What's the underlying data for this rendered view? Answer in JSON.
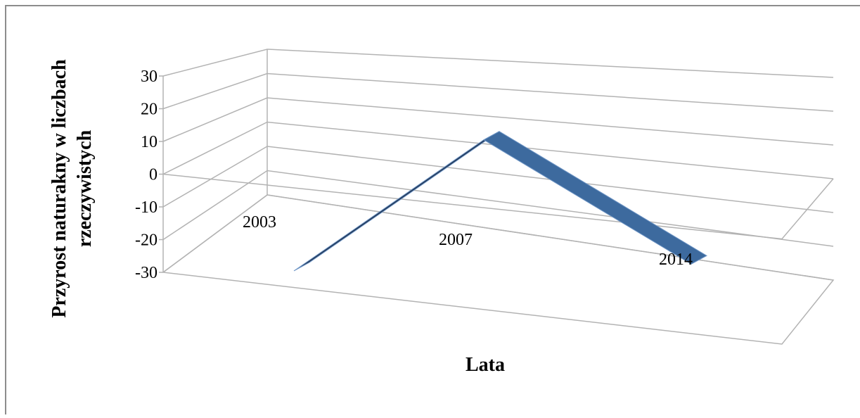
{
  "chart_data": {
    "type": "area",
    "title": "",
    "xlabel": "Lata",
    "ylabel": [
      "Przyrost naturakny w liczbach",
      "rzeczywistych"
    ],
    "categories": [
      "2003",
      "2007",
      "2014"
    ],
    "series": [
      {
        "values": [
          -25,
          20,
          -10
        ]
      }
    ],
    "ylim": [
      -30,
      30
    ],
    "yticks": [
      "30",
      "20",
      "10",
      "0",
      "-10",
      "-20",
      "-30"
    ],
    "grid": true,
    "legend": "none",
    "three_d": true,
    "colors": {
      "series_front": "#3d6a9e",
      "series_dark": "#22395a",
      "series_edge": "#6f96c6",
      "grid": "#b3b3b3",
      "frame": "#8c8c8c"
    }
  }
}
